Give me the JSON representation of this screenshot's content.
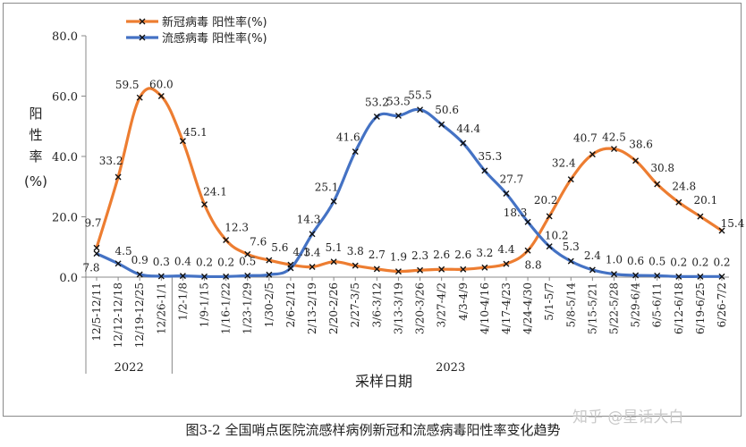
{
  "chart_data": {
    "type": "line",
    "ylabel": "阳性率(%)",
    "xlabel": "采样日期",
    "ylim": [
      0,
      80
    ],
    "yticks": [
      "0.0",
      "20.0",
      "40.0",
      "60.0",
      "80.0"
    ],
    "categories": [
      "12/5-12/11",
      "12/12-12/18",
      "12/19-12/25",
      "12/26-1/1",
      "1/2-1/8",
      "1/9-1/15",
      "1/16-1/22",
      "1/23-1/29",
      "1/30-2/5",
      "2/6-2/12",
      "2/13-2/19",
      "2/20-2/26",
      "2/27-3/5",
      "3/6-3/12",
      "3/13-3/19",
      "3/20-3/26",
      "3/27-4/2",
      "4/3-4/9",
      "4/10-4/16",
      "4/17-4/23",
      "4/24-4/30",
      "5/1-5/7",
      "5/8-5/14",
      "5/15-5/21",
      "5/22-5/28",
      "5/29-6/4",
      "6/5-6/11",
      "6/12-6/18",
      "6/19-6/25",
      "6/26-7/2"
    ],
    "year_groups": [
      {
        "label": "2022",
        "from": 0,
        "to": 3
      },
      {
        "label": "2023",
        "from": 4,
        "to": 29
      }
    ],
    "series": [
      {
        "name": "新冠病毒 阳性率(%)",
        "color": "#ED7D31",
        "values": [
          9.7,
          33.2,
          59.5,
          60.0,
          45.1,
          24.1,
          12.3,
          7.6,
          5.6,
          4.1,
          3.4,
          5.1,
          3.8,
          2.7,
          1.9,
          2.3,
          2.6,
          2.6,
          3.2,
          4.4,
          8.8,
          20.2,
          32.4,
          40.7,
          42.5,
          38.6,
          30.8,
          24.8,
          20.1,
          15.4
        ],
        "labels": [
          "9.7",
          "33.2",
          "59.5",
          "60.0",
          "45.1",
          "24.1",
          "12.3",
          "7.6",
          "5.6",
          "4.1",
          "3.4",
          "5.1",
          "3.8",
          "2.7",
          "1.9",
          "2.3",
          "2.6",
          "2.6",
          "3.2",
          "4.4",
          "8.8",
          "20.2",
          "32.4",
          "40.7",
          "42.5",
          "38.6",
          "30.8",
          "24.8",
          "20.1",
          "15.4"
        ]
      },
      {
        "name": "流感病毒 阳性率(%)",
        "color": "#4472C4",
        "values": [
          7.8,
          4.5,
          0.9,
          0.3,
          0.4,
          0.2,
          0.2,
          0.5,
          0.8,
          3.0,
          14.3,
          25.1,
          41.6,
          53.2,
          53.5,
          55.5,
          50.6,
          44.4,
          35.3,
          27.7,
          18.3,
          10.2,
          5.3,
          2.4,
          1.0,
          0.6,
          0.5,
          0.2,
          0.2,
          0.2
        ],
        "labels": [
          "7.8",
          "4.5",
          "0.9",
          "0.3",
          "0.4",
          "0.2",
          "0.2",
          "0.5",
          "",
          "",
          "14.3",
          "25.1",
          "41.6",
          "53.2",
          "53.5",
          "55.5",
          "50.6",
          "44.4",
          "35.3",
          "27.7",
          "18.3",
          "10.2",
          "5.3",
          "2.4",
          "1.0",
          "0.6",
          "0.5",
          "0.2",
          "0.2",
          "0.2"
        ]
      }
    ],
    "legend": "top-left",
    "grid": false
  },
  "caption": "图3-2 全国哨点医院流感样病例新冠和流感病毒阳性率变化趋势",
  "watermark": "知乎 @星话大白"
}
